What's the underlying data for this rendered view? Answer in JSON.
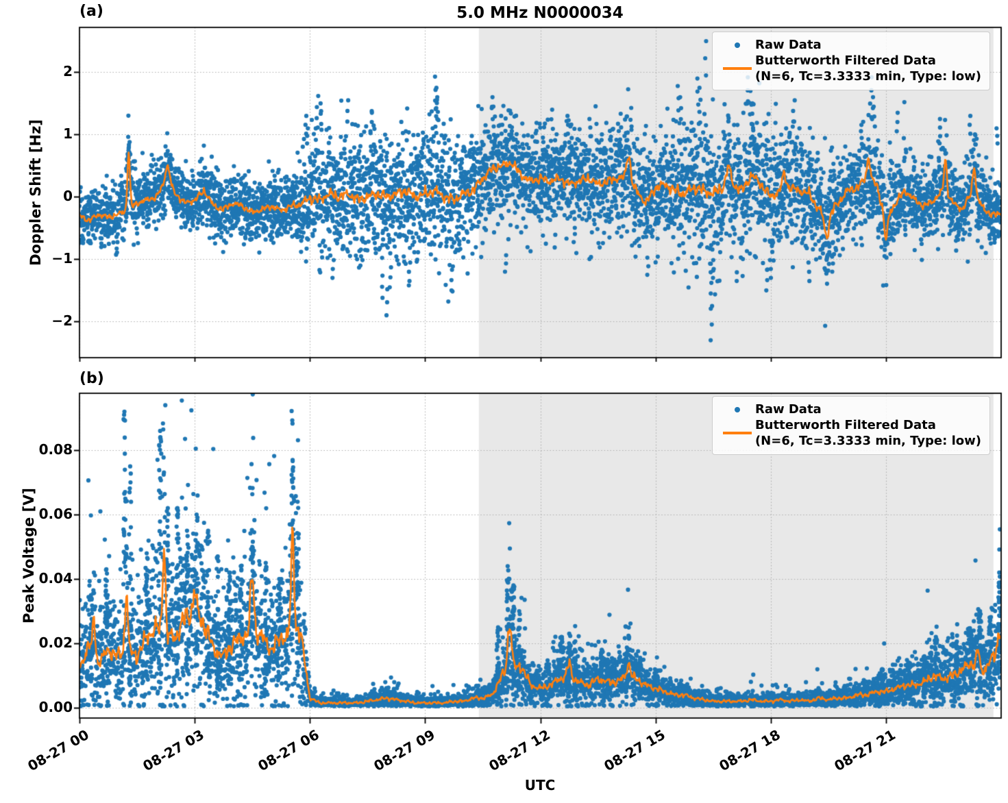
{
  "figure": {
    "xlabel": "UTC",
    "background": "#ffffff"
  },
  "colors": {
    "raw": "#1f77b4",
    "filtered": "#ff7f0e",
    "shade": "#e8e8e8",
    "grid": "#b0b0b0",
    "spine": "#000000"
  },
  "chart_data": [
    {
      "type": "scatter",
      "panel_label": "(a)",
      "title": "5.0 MHz N0000034",
      "ylabel": "Doppler Shift [Hz]",
      "ylim": [
        -2.58,
        2.72
      ],
      "yticks": [
        -2,
        -1,
        0,
        1,
        2
      ],
      "ytick_labels": [
        "−2",
        "−1",
        "0",
        "1",
        "2"
      ],
      "xlim_hours": [
        0,
        24
      ],
      "xtick_hours": [
        0,
        3,
        6,
        9,
        12,
        15,
        18,
        21
      ],
      "xtick_labels": [
        "08-27 00",
        "08-27 03",
        "08-27 06",
        "08-27 09",
        "08-27 12",
        "08-27 15",
        "08-27 18",
        "08-27 21"
      ],
      "shaded_region_hours": [
        10.4,
        23.8
      ],
      "grid": true,
      "legend": {
        "raw_label": "Raw Data",
        "filtered_label_line1": "Butterworth Filtered Data",
        "filtered_label_line2": "(N=6, Tc=3.3333 min, Type: low)"
      },
      "series": [
        {
          "name": "Raw Data",
          "style": "scatter",
          "color": "#1f77b4"
        },
        {
          "name": "Butterworth Filtered Data (N=6, Tc=3.3333 min, Type: low)",
          "style": "line",
          "color": "#ff7f0e"
        }
      ],
      "envelope": {
        "t_start": 0,
        "t_step": 0.25,
        "mean": [
          -0.3,
          -0.38,
          -0.28,
          -0.33,
          -0.28,
          -0.22,
          -0.1,
          -0.05,
          0.0,
          0.25,
          0.05,
          -0.1,
          -0.05,
          0.1,
          -0.15,
          -0.2,
          -0.1,
          -0.15,
          -0.25,
          -0.2,
          -0.15,
          -0.22,
          -0.15,
          -0.12,
          -0.02,
          -0.05,
          0.05,
          0.0,
          0.05,
          -0.05,
          0.0,
          0.05,
          0.0,
          0.05,
          0.1,
          0.0,
          0.05,
          0.1,
          0.0,
          -0.05,
          0.05,
          0.1,
          0.3,
          0.45,
          0.5,
          0.55,
          0.35,
          0.25,
          0.3,
          0.25,
          0.3,
          0.2,
          0.25,
          0.3,
          0.2,
          0.25,
          0.3,
          0.3,
          0.1,
          -0.1,
          0.15,
          0.2,
          0.1,
          0.05,
          0.15,
          0.1,
          0.05,
          0.15,
          0.2,
          0.1,
          0.35,
          0.2,
          0.0,
          0.1,
          0.15,
          0.1,
          0.05,
          -0.2,
          -0.3,
          -0.1,
          0.1,
          0.15,
          0.3,
          0.2,
          -0.35,
          -0.1,
          0.1,
          -0.05,
          -0.15,
          -0.05,
          0.1,
          -0.1,
          -0.2,
          0.1,
          -0.15,
          -0.3,
          -0.25
        ],
        "spread": [
          0.22,
          0.22,
          0.22,
          0.22,
          0.22,
          0.24,
          0.25,
          0.25,
          0.25,
          0.28,
          0.25,
          0.25,
          0.25,
          0.28,
          0.28,
          0.25,
          0.25,
          0.25,
          0.25,
          0.25,
          0.25,
          0.25,
          0.28,
          0.38,
          0.5,
          0.5,
          0.52,
          0.5,
          0.5,
          0.52,
          0.5,
          0.5,
          0.52,
          0.5,
          0.52,
          0.5,
          0.52,
          0.55,
          0.52,
          0.5,
          0.5,
          0.48,
          0.45,
          0.42,
          0.42,
          0.42,
          0.4,
          0.4,
          0.4,
          0.42,
          0.4,
          0.42,
          0.4,
          0.42,
          0.4,
          0.4,
          0.42,
          0.45,
          0.45,
          0.42,
          0.45,
          0.5,
          0.55,
          0.55,
          0.55,
          0.58,
          0.6,
          0.55,
          0.52,
          0.5,
          0.5,
          0.48,
          0.45,
          0.45,
          0.48,
          0.45,
          0.42,
          0.45,
          0.48,
          0.42,
          0.4,
          0.4,
          0.42,
          0.4,
          0.45,
          0.38,
          0.35,
          0.35,
          0.32,
          0.3,
          0.32,
          0.3,
          0.28,
          0.35,
          0.3,
          0.28,
          0.3
        ]
      },
      "line_spikes": [
        {
          "t": 1.28,
          "a": 0.95,
          "w": 0.045
        },
        {
          "t": 2.3,
          "a": 0.28,
          "w": 0.08
        },
        {
          "t": 14.3,
          "a": 0.42,
          "w": 0.07
        },
        {
          "t": 19.45,
          "a": -0.35,
          "w": 0.08
        },
        {
          "t": 21.0,
          "a": -0.35,
          "w": 0.06
        },
        {
          "t": 20.55,
          "a": 0.35,
          "w": 0.06
        },
        {
          "t": 22.55,
          "a": 0.55,
          "w": 0.05
        },
        {
          "t": 23.3,
          "a": 0.45,
          "w": 0.05
        },
        {
          "t": 16.9,
          "a": 0.3,
          "w": 0.08
        },
        {
          "t": 18.35,
          "a": 0.25,
          "w": 0.07
        }
      ],
      "outliers": [
        {
          "t": 1.28,
          "y": 0.88
        },
        {
          "t": 1.3,
          "y": 0.8
        },
        {
          "t": 5.9,
          "y": 1.3
        },
        {
          "t": 5.95,
          "y": 1.1
        },
        {
          "t": 6.2,
          "y": 1.62
        },
        {
          "t": 6.28,
          "y": 1.5
        },
        {
          "t": 6.6,
          "y": -1.3
        },
        {
          "t": 7.0,
          "y": 1.55
        },
        {
          "t": 7.6,
          "y": 1.35
        },
        {
          "t": 7.9,
          "y": -1.62
        },
        {
          "t": 8.02,
          "y": -1.9
        },
        {
          "t": 8.1,
          "y": -1.45
        },
        {
          "t": 8.6,
          "y": -1.35
        },
        {
          "t": 9.28,
          "y": 1.93
        },
        {
          "t": 9.32,
          "y": 1.75
        },
        {
          "t": 9.3,
          "y": 1.6
        },
        {
          "t": 9.7,
          "y": -1.5
        },
        {
          "t": 10.75,
          "y": 1.6
        },
        {
          "t": 10.8,
          "y": 1.45
        },
        {
          "t": 11.0,
          "y": 1.3
        },
        {
          "t": 11.1,
          "y": -1.2
        },
        {
          "t": 12.3,
          "y": 1.4
        },
        {
          "t": 12.7,
          "y": 1.3
        },
        {
          "t": 13.3,
          "y": 1.25
        },
        {
          "t": 14.8,
          "y": -1.25
        },
        {
          "t": 15.6,
          "y": 1.78
        },
        {
          "t": 15.65,
          "y": 1.6
        },
        {
          "t": 16.1,
          "y": 1.9
        },
        {
          "t": 16.15,
          "y": 1.75
        },
        {
          "t": 16.3,
          "y": 2.5
        },
        {
          "t": 16.45,
          "y": -2.3
        },
        {
          "t": 16.44,
          "y": -1.55
        },
        {
          "t": 16.5,
          "y": -1.3
        },
        {
          "t": 17.4,
          "y": 1.92
        },
        {
          "t": 17.45,
          "y": 1.7
        },
        {
          "t": 17.5,
          "y": 1.5
        },
        {
          "t": 17.9,
          "y": -1.5
        },
        {
          "t": 18.0,
          "y": -1.3
        },
        {
          "t": 18.6,
          "y": 1.55
        },
        {
          "t": 19.0,
          "y": -1.35
        },
        {
          "t": 19.6,
          "y": -1.2
        },
        {
          "t": 20.6,
          "y": 1.92
        },
        {
          "t": 20.65,
          "y": 1.6
        },
        {
          "t": 20.7,
          "y": 1.45
        },
        {
          "t": 21.3,
          "y": 1.35
        },
        {
          "t": 22.4,
          "y": 1.25
        },
        {
          "t": 23.2,
          "y": 1.3
        },
        {
          "t": 23.9,
          "y": 1.1
        }
      ]
    },
    {
      "type": "scatter",
      "panel_label": "(b)",
      "title": "",
      "ylabel": "Peak Voltage [V]",
      "ylim": [
        -0.0032,
        0.0977
      ],
      "yticks": [
        0.0,
        0.02,
        0.04,
        0.06,
        0.08
      ],
      "ytick_labels": [
        "0.00",
        "0.02",
        "0.04",
        "0.06",
        "0.08"
      ],
      "xlim_hours": [
        0,
        24
      ],
      "xtick_hours": [
        0,
        3,
        6,
        9,
        12,
        15,
        18,
        21
      ],
      "xtick_labels": [
        "08-27 00",
        "08-27 03",
        "08-27 06",
        "08-27 09",
        "08-27 12",
        "08-27 15",
        "08-27 18",
        "08-27 21"
      ],
      "shaded_region_hours": [
        10.4,
        23.8
      ],
      "grid": true,
      "legend": {
        "raw_label": "Raw Data",
        "filtered_label_line1": "Butterworth Filtered Data",
        "filtered_label_line2": "(N=6, Tc=3.3333 min, Type: low)"
      },
      "series": [
        {
          "name": "Raw Data",
          "style": "scatter",
          "color": "#1f77b4"
        },
        {
          "name": "Butterworth Filtered Data (N=6, Tc=3.3333 min, Type: low)",
          "style": "line",
          "color": "#ff7f0e"
        }
      ],
      "envelope": {
        "t_start": 0,
        "t_step": 0.25,
        "mean": [
          0.012,
          0.02,
          0.014,
          0.018,
          0.016,
          0.018,
          0.016,
          0.022,
          0.025,
          0.022,
          0.022,
          0.028,
          0.03,
          0.026,
          0.018,
          0.016,
          0.02,
          0.022,
          0.024,
          0.022,
          0.018,
          0.022,
          0.022,
          0.024,
          0.003,
          0.0015,
          0.0015,
          0.0015,
          0.0015,
          0.0015,
          0.002,
          0.0025,
          0.003,
          0.0025,
          0.002,
          0.0015,
          0.0015,
          0.0015,
          0.0015,
          0.002,
          0.002,
          0.003,
          0.003,
          0.004,
          0.01,
          0.012,
          0.013,
          0.007,
          0.006,
          0.007,
          0.009,
          0.01,
          0.008,
          0.007,
          0.009,
          0.008,
          0.008,
          0.01,
          0.009,
          0.007,
          0.006,
          0.005,
          0.004,
          0.004,
          0.003,
          0.0025,
          0.002,
          0.002,
          0.002,
          0.002,
          0.0025,
          0.002,
          0.002,
          0.0025,
          0.002,
          0.0025,
          0.002,
          0.003,
          0.0025,
          0.003,
          0.003,
          0.004,
          0.004,
          0.005,
          0.005,
          0.006,
          0.007,
          0.007,
          0.008,
          0.01,
          0.009,
          0.01,
          0.012,
          0.014,
          0.011,
          0.015,
          0.019
        ],
        "spread_factor": 0.5,
        "spread_min": 0.0008
      },
      "line_spikes": [
        {
          "t": 0.38,
          "a": 0.012,
          "w": 0.04
        },
        {
          "t": 1.22,
          "a": 0.019,
          "w": 0.05
        },
        {
          "t": 2.2,
          "a": 0.03,
          "w": 0.05
        },
        {
          "t": 3.0,
          "a": 0.006,
          "w": 0.06
        },
        {
          "t": 4.5,
          "a": 0.018,
          "w": 0.06
        },
        {
          "t": 5.55,
          "a": 0.03,
          "w": 0.06
        },
        {
          "t": 11.2,
          "a": 0.015,
          "w": 0.07
        },
        {
          "t": 12.75,
          "a": 0.004,
          "w": 0.06
        },
        {
          "t": 14.3,
          "a": 0.004,
          "w": 0.06
        },
        {
          "t": 23.4,
          "a": 0.006,
          "w": 0.05
        },
        {
          "t": 23.95,
          "a": 0.007,
          "w": 0.05
        }
      ],
      "raw_spikes": [
        {
          "t": 0.3,
          "y": 0.035
        },
        {
          "t": 0.7,
          "y": 0.043
        },
        {
          "t": 1.17,
          "y": 0.092
        },
        {
          "t": 1.32,
          "y": 0.075
        },
        {
          "t": 1.75,
          "y": 0.048
        },
        {
          "t": 2.1,
          "y": 0.086
        },
        {
          "t": 2.3,
          "y": 0.062
        },
        {
          "t": 2.55,
          "y": 0.062
        },
        {
          "t": 2.8,
          "y": 0.055
        },
        {
          "t": 3.05,
          "y": 0.06
        },
        {
          "t": 3.35,
          "y": 0.055
        },
        {
          "t": 3.6,
          "y": 0.047
        },
        {
          "t": 3.9,
          "y": 0.042
        },
        {
          "t": 4.2,
          "y": 0.044
        },
        {
          "t": 4.5,
          "y": 0.05
        },
        {
          "t": 4.85,
          "y": 0.045
        },
        {
          "t": 5.2,
          "y": 0.04
        },
        {
          "t": 5.55,
          "y": 0.077
        },
        {
          "t": 5.68,
          "y": 0.064
        },
        {
          "t": 7.95,
          "y": 0.0055
        },
        {
          "t": 8.15,
          "y": 0.005
        },
        {
          "t": 10.9,
          "y": 0.025
        },
        {
          "t": 11.15,
          "y": 0.044
        },
        {
          "t": 11.3,
          "y": 0.038
        },
        {
          "t": 11.45,
          "y": 0.03
        },
        {
          "t": 12.55,
          "y": 0.022
        },
        {
          "t": 12.75,
          "y": 0.02
        },
        {
          "t": 12.9,
          "y": 0.018
        },
        {
          "t": 13.6,
          "y": 0.018
        },
        {
          "t": 13.75,
          "y": 0.015
        },
        {
          "t": 14.25,
          "y": 0.017
        },
        {
          "t": 14.6,
          "y": 0.015
        },
        {
          "t": 20.9,
          "y": 0.012
        },
        {
          "t": 21.6,
          "y": 0.014
        },
        {
          "t": 22.0,
          "y": 0.016
        },
        {
          "t": 22.3,
          "y": 0.022
        },
        {
          "t": 22.85,
          "y": 0.019
        },
        {
          "t": 23.2,
          "y": 0.024
        },
        {
          "t": 23.45,
          "y": 0.03
        },
        {
          "t": 23.7,
          "y": 0.028
        },
        {
          "t": 23.95,
          "y": 0.042
        }
      ],
      "outliers": []
    }
  ]
}
